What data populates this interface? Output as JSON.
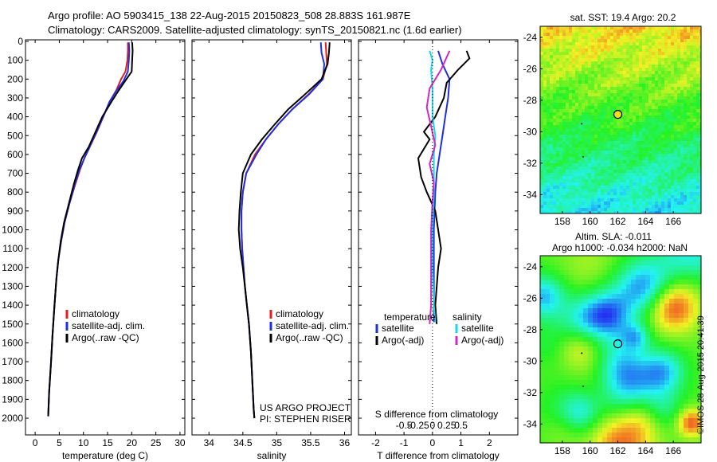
{
  "header": {
    "line1": "Argo profile: AO 5903415_138 22-Aug-2015 20150823_508 28.883S 161.987E",
    "line2": "Climatology: CARS2009. Satellite-adjusted climatology: synTS_20150821.nc (1.6d earlier)"
  },
  "footer": {
    "stamp": "©IMOS 28-Aug-2015 20:41:39"
  },
  "colors": {
    "climatology": "#e02020",
    "satellite": "#1f2fe0",
    "argo": "#000000",
    "sal_satellite": "#18d8e8",
    "sal_argo": "#d028c8"
  },
  "chart_data": [
    {
      "type": "line",
      "xlabel": "temperature (deg C)",
      "xlim": [
        -2,
        31
      ],
      "ylim": [
        2100,
        0
      ],
      "xticks": [
        0,
        5,
        10,
        15,
        20,
        25,
        30
      ],
      "yticks": [
        0,
        100,
        200,
        300,
        400,
        500,
        600,
        700,
        800,
        900,
        1000,
        1100,
        1200,
        1300,
        1400,
        1500,
        1600,
        1700,
        1800,
        1900,
        2000
      ],
      "legend": [
        "climatology",
        "satellite-adj. clim.",
        "Argo(..raw -QC)"
      ],
      "series": [
        {
          "name": "climatology",
          "color": "climatology",
          "points": [
            [
              19.2,
              5
            ],
            [
              19.2,
              50
            ],
            [
              19.1,
              100
            ],
            [
              18.7,
              160
            ],
            [
              17.8,
              200
            ],
            [
              16.8,
              260
            ],
            [
              15.4,
              320
            ],
            [
              14.1,
              400
            ],
            [
              12.8,
              480
            ],
            [
              11.3,
              560
            ],
            [
              10.2,
              620
            ],
            [
              9.3,
              680
            ],
            [
              8.3,
              760
            ],
            [
              7.1,
              860
            ],
            [
              6.1,
              960
            ],
            [
              5.4,
              1060
            ],
            [
              4.8,
              1160
            ],
            [
              4.4,
              1260
            ],
            [
              4.0,
              1400
            ],
            [
              3.6,
              1560
            ],
            [
              3.3,
              1700
            ],
            [
              2.9,
              1860
            ],
            [
              2.7,
              1990
            ]
          ]
        },
        {
          "name": "satellite-adj. clim.",
          "color": "satellite",
          "points": [
            [
              19.4,
              5
            ],
            [
              19.5,
              50
            ],
            [
              19.4,
              100
            ],
            [
              19.2,
              160
            ],
            [
              18.3,
              210
            ],
            [
              16.9,
              260
            ],
            [
              15.4,
              320
            ],
            [
              14.1,
              400
            ],
            [
              12.7,
              480
            ],
            [
              11.3,
              560
            ],
            [
              10.2,
              620
            ],
            [
              9.2,
              680
            ],
            [
              8.2,
              760
            ],
            [
              7.1,
              860
            ],
            [
              6.1,
              960
            ],
            [
              5.4,
              1060
            ],
            [
              4.8,
              1160
            ],
            [
              4.4,
              1260
            ],
            [
              4.0,
              1400
            ],
            [
              3.6,
              1560
            ],
            [
              3.3,
              1700
            ],
            [
              2.9,
              1860
            ],
            [
              2.7,
              1990
            ]
          ]
        },
        {
          "name": "Argo(..raw -QC)",
          "color": "argo",
          "points": [
            [
              20.1,
              5
            ],
            [
              20.2,
              50
            ],
            [
              20.1,
              100
            ],
            [
              20.0,
              160
            ],
            [
              18.9,
              200
            ],
            [
              17.3,
              260
            ],
            [
              15.8,
              320
            ],
            [
              13.9,
              400
            ],
            [
              12.5,
              480
            ],
            [
              11.1,
              560
            ],
            [
              9.7,
              620
            ],
            [
              8.9,
              680
            ],
            [
              8.0,
              760
            ],
            [
              7.0,
              860
            ],
            [
              6.0,
              960
            ],
            [
              5.3,
              1060
            ],
            [
              4.8,
              1160
            ],
            [
              4.4,
              1260
            ],
            [
              4.0,
              1400
            ],
            [
              3.6,
              1560
            ],
            [
              3.3,
              1700
            ],
            [
              2.9,
              1860
            ],
            [
              2.7,
              1990
            ]
          ]
        }
      ]
    },
    {
      "type": "line",
      "xlabel": "salinity",
      "xlim": [
        33.75,
        36.1
      ],
      "ylim": [
        2100,
        0
      ],
      "xticks": [
        34,
        34.5,
        35,
        35.5,
        36
      ],
      "legend": [
        "climatology",
        "satellite-adj. clim.",
        "Argo(..raw -QC)"
      ],
      "annotation": [
        "US ARGO PROJECT",
        "PI: STEPHEN RISER"
      ],
      "series": [
        {
          "name": "climatology",
          "color": "climatology",
          "points": [
            [
              35.72,
              5
            ],
            [
              35.73,
              60
            ],
            [
              35.74,
              120
            ],
            [
              35.68,
              200
            ],
            [
              35.47,
              280
            ],
            [
              35.23,
              360
            ],
            [
              35.02,
              440
            ],
            [
              34.84,
              520
            ],
            [
              34.68,
              600
            ],
            [
              34.55,
              700
            ],
            [
              34.5,
              800
            ],
            [
              34.48,
              900
            ],
            [
              34.48,
              1000
            ],
            [
              34.49,
              1100
            ],
            [
              34.51,
              1200
            ],
            [
              34.53,
              1300
            ],
            [
              34.56,
              1400
            ],
            [
              34.59,
              1500
            ],
            [
              34.62,
              1650
            ],
            [
              34.64,
              1800
            ],
            [
              34.66,
              1950
            ],
            [
              34.67,
              2000
            ]
          ]
        },
        {
          "name": "satellite-adj. clim.",
          "color": "satellite",
          "points": [
            [
              35.65,
              5
            ],
            [
              35.66,
              60
            ],
            [
              35.7,
              120
            ],
            [
              35.68,
              200
            ],
            [
              35.48,
              280
            ],
            [
              35.23,
              360
            ],
            [
              35.02,
              440
            ],
            [
              34.84,
              520
            ],
            [
              34.7,
              600
            ],
            [
              34.55,
              700
            ],
            [
              34.5,
              800
            ],
            [
              34.48,
              900
            ],
            [
              34.48,
              1000
            ],
            [
              34.49,
              1100
            ],
            [
              34.51,
              1200
            ],
            [
              34.53,
              1300
            ],
            [
              34.56,
              1400
            ],
            [
              34.59,
              1500
            ],
            [
              34.62,
              1650
            ],
            [
              34.64,
              1800
            ],
            [
              34.66,
              1950
            ],
            [
              34.67,
              2000
            ]
          ]
        },
        {
          "name": "Argo(..raw -QC)",
          "color": "argo",
          "points": [
            [
              35.78,
              5
            ],
            [
              35.77,
              60
            ],
            [
              35.75,
              120
            ],
            [
              35.66,
              200
            ],
            [
              35.42,
              280
            ],
            [
              35.17,
              360
            ],
            [
              34.97,
              440
            ],
            [
              34.78,
              520
            ],
            [
              34.62,
              600
            ],
            [
              34.5,
              700
            ],
            [
              34.47,
              800
            ],
            [
              34.45,
              900
            ],
            [
              34.44,
              1000
            ],
            [
              34.46,
              1100
            ],
            [
              34.5,
              1200
            ],
            [
              34.53,
              1300
            ],
            [
              34.56,
              1400
            ],
            [
              34.59,
              1500
            ],
            [
              34.62,
              1650
            ],
            [
              34.64,
              1800
            ],
            [
              34.66,
              1950
            ],
            [
              34.67,
              2000
            ]
          ]
        }
      ]
    },
    {
      "type": "line",
      "xlabel": "T difference from climatology",
      "xlabel_top": "S difference from climatology",
      "xlim": [
        -2.6,
        3.0
      ],
      "ylim": [
        2100,
        0
      ],
      "xticks": [
        -2,
        -1,
        0,
        1,
        2
      ],
      "xticks_s": [
        "-0.5",
        "-0.25",
        "0",
        "0.25",
        "0.5"
      ],
      "legend_titles": [
        "temperature",
        "salinity"
      ],
      "legend": [
        "satellite",
        "Argo(-adj)",
        "satellite",
        "Argo(-adj)"
      ],
      "series": [
        {
          "name": "satellite",
          "color": "satellite",
          "points": [
            [
              0.2,
              50
            ],
            [
              0.35,
              120
            ],
            [
              0.6,
              200
            ],
            [
              0.55,
              300
            ],
            [
              0.45,
              400
            ],
            [
              0.35,
              500
            ],
            [
              0.25,
              600
            ],
            [
              0.15,
              700
            ],
            [
              0.1,
              800
            ],
            [
              0.05,
              1000
            ],
            [
              0.05,
              1200
            ],
            [
              0.05,
              1400
            ],
            [
              0.05,
              1490
            ]
          ]
        },
        {
          "name": "Argo(-adj)",
          "color": "argo",
          "points": [
            [
              1.2,
              50
            ],
            [
              1.3,
              90
            ],
            [
              0.9,
              150
            ],
            [
              0.5,
              220
            ],
            [
              0.4,
              300
            ],
            [
              0.1,
              400
            ],
            [
              -0.3,
              480
            ],
            [
              -0.1,
              520
            ],
            [
              -0.5,
              620
            ],
            [
              -0.4,
              720
            ],
            [
              -0.2,
              800
            ],
            [
              0.1,
              900
            ],
            [
              0.2,
              1000
            ],
            [
              0.3,
              1100
            ],
            [
              0.2,
              1200
            ],
            [
              0.15,
              1300
            ],
            [
              0.1,
              1400
            ],
            [
              0.15,
              1500
            ]
          ]
        },
        {
          "name": "satellite",
          "color": "sal_satellite",
          "points": [
            [
              -0.1,
              50
            ],
            [
              0.0,
              100
            ],
            [
              -0.05,
              150
            ],
            [
              0.0,
              250
            ],
            [
              0.0,
              400
            ],
            [
              0.1,
              500
            ],
            [
              0.05,
              600
            ],
            [
              0.05,
              700
            ],
            [
              0.05,
              800
            ],
            [
              0.0,
              1000
            ],
            [
              0.0,
              1200
            ],
            [
              0.05,
              1400
            ],
            [
              0.1,
              1490
            ]
          ]
        },
        {
          "name": "Argo(-adj)",
          "color": "sal_argo",
          "points": [
            [
              0.6,
              50
            ],
            [
              0.3,
              150
            ],
            [
              -0.1,
              250
            ],
            [
              -0.2,
              350
            ],
            [
              -0.05,
              450
            ],
            [
              0.1,
              550
            ],
            [
              -0.1,
              650
            ],
            [
              0.05,
              750
            ],
            [
              0.0,
              850
            ],
            [
              -0.05,
              1000
            ],
            [
              -0.05,
              1200
            ],
            [
              -0.05,
              1400
            ],
            [
              -0.1,
              1500
            ]
          ]
        }
      ]
    },
    {
      "type": "heatmap",
      "title": "sat. SST: 19.4  Argo: 20.2",
      "xlim": [
        156.4,
        168
      ],
      "ylim": [
        -35.2,
        -23.3
      ],
      "xticks": [
        158,
        160,
        162,
        164,
        166
      ],
      "yticks": [
        -24,
        -26,
        -28,
        -30,
        -32,
        -34
      ],
      "marker": {
        "lon": 162,
        "lat": -28.9
      }
    },
    {
      "type": "heatmap",
      "title_lines": [
        "Altim. SLA: -0.011",
        "Argo h1000: -0.034  h2000: NaN"
      ],
      "xlim": [
        156.4,
        168
      ],
      "ylim": [
        -35.2,
        -23.3
      ],
      "xticks": [
        158,
        160,
        162,
        164,
        166
      ],
      "yticks": [
        -24,
        -26,
        -28,
        -30,
        -32,
        -34
      ],
      "marker": {
        "lon": 162,
        "lat": -28.9
      }
    }
  ]
}
